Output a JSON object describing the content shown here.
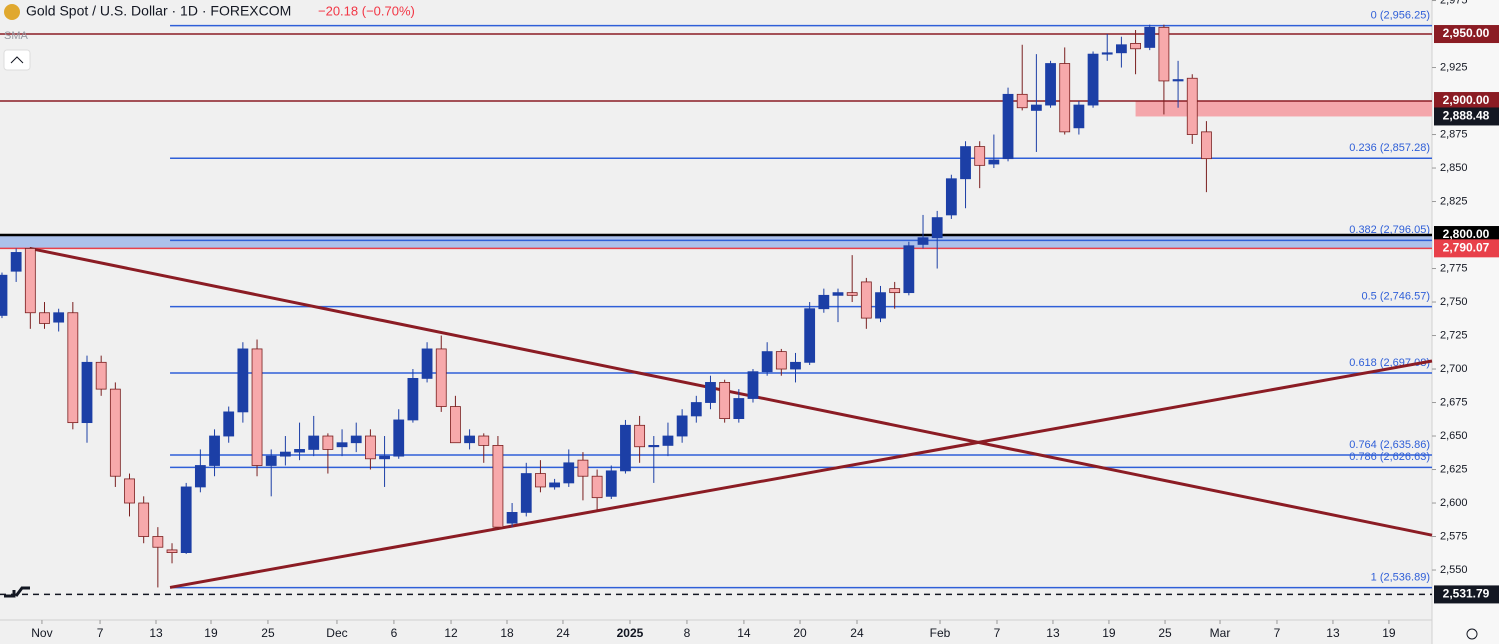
{
  "chart_data": {
    "type": "candlestick",
    "title": "Gold Spot / U.S. Dollar · 1D · FOREXCOM",
    "change": "−20.18 (−0.70%)",
    "indicator": "SMA",
    "open": [
      2740,
      2773,
      2790,
      2742,
      2735,
      2742,
      2660,
      2705,
      2685,
      2618,
      2600,
      2575,
      2565,
      2563,
      2612,
      2628,
      2650,
      2668,
      2715,
      2628,
      2635,
      2638,
      2640,
      2650,
      2642,
      2645,
      2650,
      2633,
      2635,
      2662,
      2693,
      2715,
      2672,
      2645,
      2650,
      2643,
      2585,
      2593,
      2622,
      2612,
      2615,
      2632,
      2620,
      2605,
      2624,
      2658,
      2642,
      2643,
      2650,
      2665,
      2675,
      2690,
      2663,
      2678,
      2698,
      2713,
      2700,
      2705,
      2745,
      2755,
      2757,
      2765,
      2738,
      2760,
      2757,
      2793,
      2798,
      2815,
      2842,
      2866,
      2853,
      2857,
      2905,
      2893,
      2897,
      2928,
      2880,
      2897,
      2935,
      2936,
      2943,
      2940,
      2955,
      2915,
      2917,
      2877
    ],
    "high": [
      2772,
      2790,
      2791,
      2750,
      2745,
      2750,
      2710,
      2710,
      2690,
      2622,
      2605,
      2582,
      2570,
      2615,
      2640,
      2655,
      2672,
      2720,
      2722,
      2640,
      2650,
      2660,
      2665,
      2652,
      2655,
      2660,
      2655,
      2650,
      2670,
      2700,
      2720,
      2725,
      2680,
      2655,
      2652,
      2650,
      2600,
      2630,
      2632,
      2618,
      2640,
      2638,
      2625,
      2628,
      2662,
      2665,
      2650,
      2660,
      2670,
      2680,
      2695,
      2692,
      2685,
      2700,
      2720,
      2715,
      2712,
      2750,
      2760,
      2760,
      2785,
      2768,
      2762,
      2765,
      2795,
      2815,
      2818,
      2845,
      2870,
      2870,
      2875,
      2910,
      2942,
      2935,
      2930,
      2940,
      2900,
      2937,
      2950,
      2948,
      2953,
      2957,
      2957,
      2930,
      2920,
      2885
    ],
    "low": [
      2738,
      2765,
      2730,
      2730,
      2728,
      2655,
      2645,
      2680,
      2612,
      2590,
      2570,
      2537,
      2555,
      2562,
      2608,
      2620,
      2645,
      2660,
      2620,
      2605,
      2628,
      2632,
      2635,
      2622,
      2635,
      2638,
      2625,
      2612,
      2633,
      2660,
      2690,
      2668,
      2645,
      2640,
      2630,
      2580,
      2582,
      2590,
      2608,
      2610,
      2612,
      2602,
      2595,
      2603,
      2622,
      2630,
      2615,
      2635,
      2645,
      2660,
      2670,
      2660,
      2660,
      2675,
      2695,
      2695,
      2690,
      2703,
      2742,
      2735,
      2750,
      2730,
      2735,
      2745,
      2755,
      2790,
      2775,
      2812,
      2820,
      2835,
      2850,
      2855,
      2893,
      2862,
      2895,
      2875,
      2875,
      2895,
      2930,
      2925,
      2920,
      2938,
      2890,
      2895,
      2868,
      2832
    ],
    "close": [
      2770,
      2787,
      2742,
      2734,
      2742,
      2660,
      2705,
      2685,
      2620,
      2600,
      2575,
      2567,
      2563,
      2612,
      2628,
      2650,
      2668,
      2715,
      2628,
      2635,
      2638,
      2640,
      2650,
      2640,
      2645,
      2650,
      2633,
      2635,
      2662,
      2693,
      2715,
      2672,
      2645,
      2650,
      2643,
      2582,
      2593,
      2622,
      2612,
      2615,
      2630,
      2620,
      2604,
      2624,
      2658,
      2642,
      2643,
      2650,
      2665,
      2675,
      2690,
      2663,
      2678,
      2698,
      2713,
      2700,
      2705,
      2745,
      2755,
      2757,
      2755,
      2738,
      2757,
      2757,
      2792,
      2798,
      2813,
      2842,
      2866,
      2852,
      2856,
      2905,
      2895,
      2897,
      2928,
      2877,
      2897,
      2935,
      2936,
      2942,
      2939,
      2955,
      2915,
      2916,
      2875,
      2857
    ],
    "up_color": "#1c3fa6",
    "down_color": "#f7a9ab",
    "down_edge": "#7a1f1f",
    "xlim": [
      -0.14,
      100.92
    ],
    "xticks": [
      {
        "value": 2.82,
        "label": "Nov"
      },
      {
        "value": 6.92,
        "label": "7"
      },
      {
        "value": 10.87,
        "label": "13"
      },
      {
        "value": 14.75,
        "label": "19"
      },
      {
        "value": 18.77,
        "label": "25"
      },
      {
        "value": 23.64,
        "label": "Dec"
      },
      {
        "value": 27.66,
        "label": "6"
      },
      {
        "value": 31.69,
        "label": "12"
      },
      {
        "value": 35.64,
        "label": "18"
      },
      {
        "value": 39.59,
        "label": "24"
      },
      {
        "value": 44.32,
        "label": "2025"
      },
      {
        "value": 48.34,
        "label": "8"
      },
      {
        "value": 52.36,
        "label": "14"
      },
      {
        "value": 56.32,
        "label": "20"
      },
      {
        "value": 60.34,
        "label": "24"
      },
      {
        "value": 66.2,
        "label": "Feb"
      },
      {
        "value": 70.22,
        "label": "7"
      },
      {
        "value": 74.17,
        "label": "13"
      },
      {
        "value": 78.12,
        "label": "19"
      },
      {
        "value": 82.08,
        "label": "25"
      },
      {
        "value": 85.96,
        "label": "Mar"
      },
      {
        "value": 89.98,
        "label": "7"
      },
      {
        "value": 93.93,
        "label": "13"
      },
      {
        "value": 97.88,
        "label": "19"
      }
    ],
    "ylim": [
      2512.7,
      2975.4
    ],
    "yticks": [
      {
        "value": 2975,
        "label": "2,975"
      },
      {
        "value": 2925,
        "label": "2,925"
      },
      {
        "value": 2875,
        "label": "2,875"
      },
      {
        "value": 2850,
        "label": "2,850"
      },
      {
        "value": 2825,
        "label": "2,825"
      },
      {
        "value": 2775,
        "label": "2,775"
      },
      {
        "value": 2750,
        "label": "2,750"
      },
      {
        "value": 2725,
        "label": "2,725"
      },
      {
        "value": 2700,
        "label": "2,700"
      },
      {
        "value": 2675,
        "label": "2,675"
      },
      {
        "value": 2650,
        "label": "2,650"
      },
      {
        "value": 2625,
        "label": "2,625"
      },
      {
        "value": 2600,
        "label": "2,600"
      },
      {
        "value": 2575,
        "label": "2,575"
      },
      {
        "value": 2550,
        "label": "2,550"
      }
    ],
    "fib_start": 11.86,
    "fib_levels": [
      {
        "value": 2956.25,
        "label": "0 (2,956.25)"
      },
      {
        "value": 2857.28,
        "label": "0.236 (2,857.28)"
      },
      {
        "value": 2796.05,
        "label": "0.382 (2,796.05)"
      },
      {
        "value": 2746.57,
        "label": "0.5 (2,746.57)"
      },
      {
        "value": 2697.08,
        "label": "0.618 (2,697.08)"
      },
      {
        "value": 2635.86,
        "label": "0.764 (2,635.86)"
      },
      {
        "value": 2626.63,
        "label": "0.786 (2,626.63)"
      },
      {
        "value": 2536.89,
        "label": "1 (2,536.89)"
      }
    ],
    "fib_color": "#2f5fd8",
    "levels": [
      {
        "value": 2950,
        "label": "2,950.00",
        "color": "#8b1c24"
      },
      {
        "value": 2900,
        "label": "2,900.00",
        "color": "#8b1c24"
      },
      {
        "value": 2888.48,
        "label": "2,888.48",
        "color": "#131722"
      },
      {
        "value": 2800,
        "label": "2,800.00",
        "color": "#000000"
      },
      {
        "value": 2790.07,
        "label": "2,790.07",
        "color": "#e8404a"
      },
      {
        "value": 2531.79,
        "label": "2,531.79",
        "color": "#131722"
      }
    ],
    "trendlines": [
      {
        "x": [
          1.98,
          100.92
        ],
        "values": [
          2790,
          2576
        ],
        "color": "#8b1c24"
      },
      {
        "x": [
          11.86,
          100.92
        ],
        "values": [
          2537,
          2706
        ],
        "color": "#8b1c24"
      }
    ]
  }
}
